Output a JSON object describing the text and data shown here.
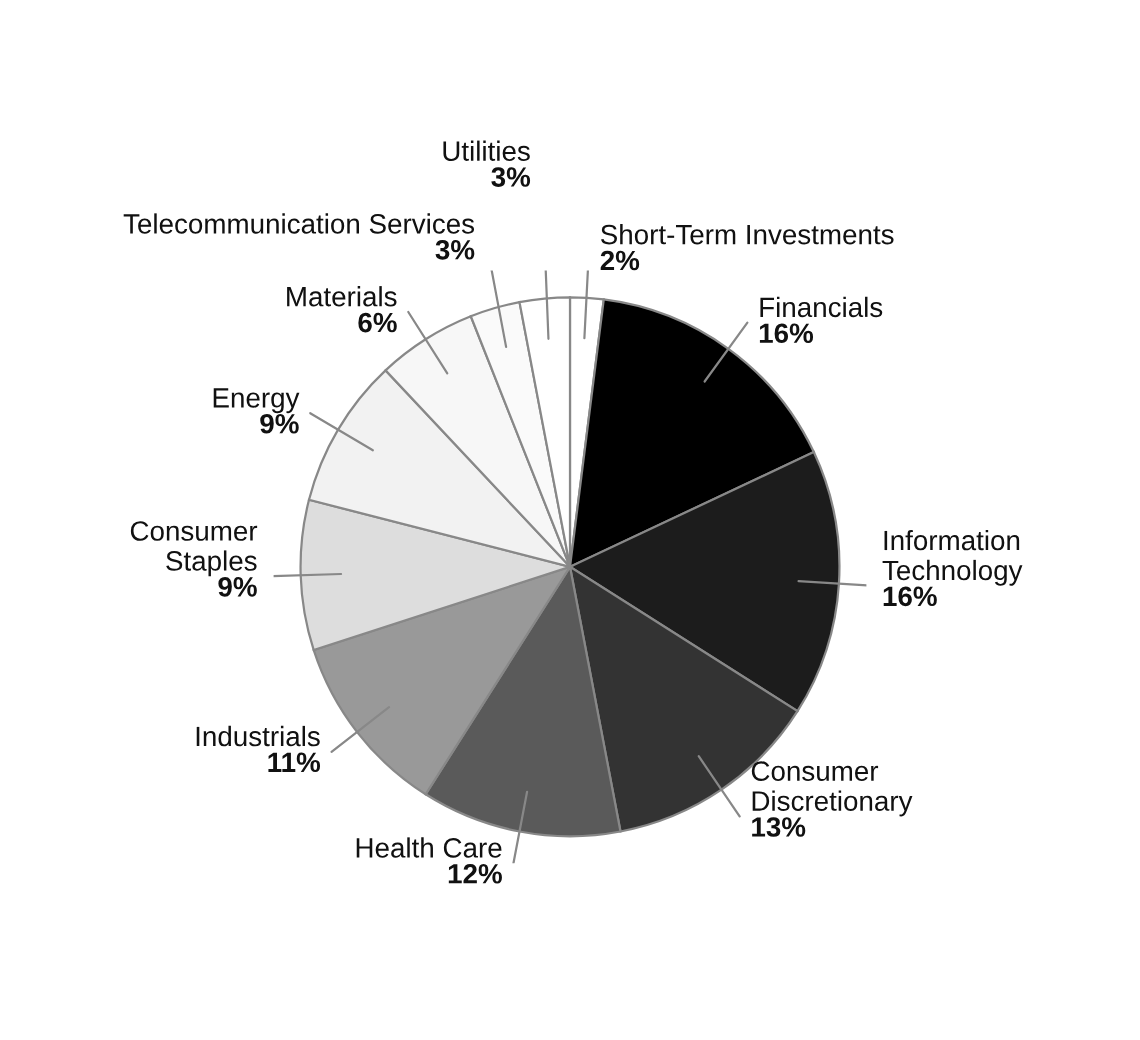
{
  "chart_data": {
    "type": "pie",
    "categories": [
      "Short-Term Investments",
      "Financials",
      "Information Technology",
      "Consumer Discretionary",
      "Health Care",
      "Industrials",
      "Consumer Staples",
      "Energy",
      "Materials",
      "Telecommunication Services",
      "Utilities"
    ],
    "values": [
      2,
      16,
      16,
      13,
      12,
      11,
      9,
      9,
      6,
      3,
      3
    ],
    "value_labels": [
      "2%",
      "16%",
      "16%",
      "13%",
      "12%",
      "11%",
      "9%",
      "9%",
      "6%",
      "3%",
      "3%"
    ],
    "colors": [
      "#ffffff",
      "#000000",
      "#1c1c1c",
      "#333333",
      "#5a5a5a",
      "#999999",
      "#dddddd",
      "#f2f2f2",
      "#f7f7f7",
      "#fafafa",
      "#ffffff"
    ]
  }
}
